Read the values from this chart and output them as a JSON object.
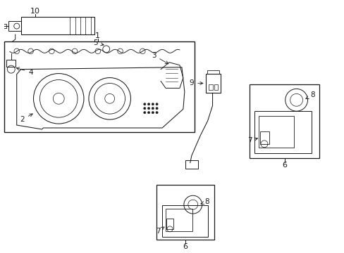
{
  "bg_color": "#ffffff",
  "line_color": "#1a1a1a",
  "lw": 0.8,
  "fig_w": 4.89,
  "fig_h": 3.6,
  "xlim": [
    0,
    4.89
  ],
  "ylim": [
    0,
    3.6
  ]
}
